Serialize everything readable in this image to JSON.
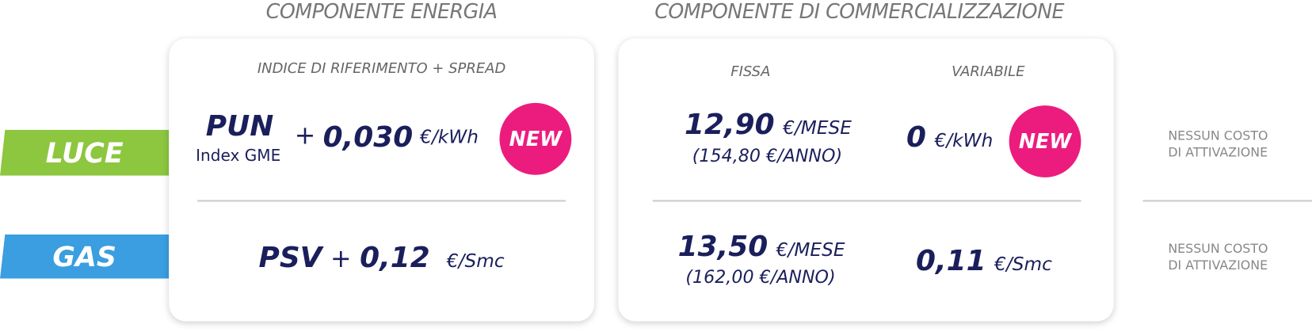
{
  "headers": {
    "energy": "COMPONENTE ENERGIA",
    "commercial": "COMPONENTE DI COMMERCIALIZZAZIONE"
  },
  "rows": {
    "luce": "LUCE",
    "gas": "GAS"
  },
  "energy_card": {
    "subtitle": "INDICE DI RIFERIMENTO + SPREAD",
    "luce": {
      "index": "PUN",
      "index_note": "Index GME",
      "plus": "+",
      "spread": "0,030",
      "unit": "€/kWh",
      "badge": "NEW"
    },
    "gas": {
      "index": "PSV",
      "plus": "+",
      "spread": "0,12",
      "unit": "€/Smc"
    }
  },
  "commercial_card": {
    "fixed_header": "FISSA",
    "variable_header": "VARIABILE",
    "luce": {
      "fixed": "12,90",
      "fixed_unit": "€/MESE",
      "fixed_year": "(154,80 €/ANNO)",
      "variable": "0",
      "variable_unit": "€/kWh",
      "badge": "NEW"
    },
    "gas": {
      "fixed": "13,50",
      "fixed_unit": "€/MESE",
      "fixed_year": "(162,00 €/ANNO)",
      "variable": "0,11",
      "variable_unit": "€/Smc"
    }
  },
  "activation": {
    "luce": [
      "NESSUN COSTO",
      "DI ATTIVAZIONE"
    ],
    "gas": [
      "NESSUN COSTO",
      "DI ATTIVAZIONE"
    ]
  }
}
